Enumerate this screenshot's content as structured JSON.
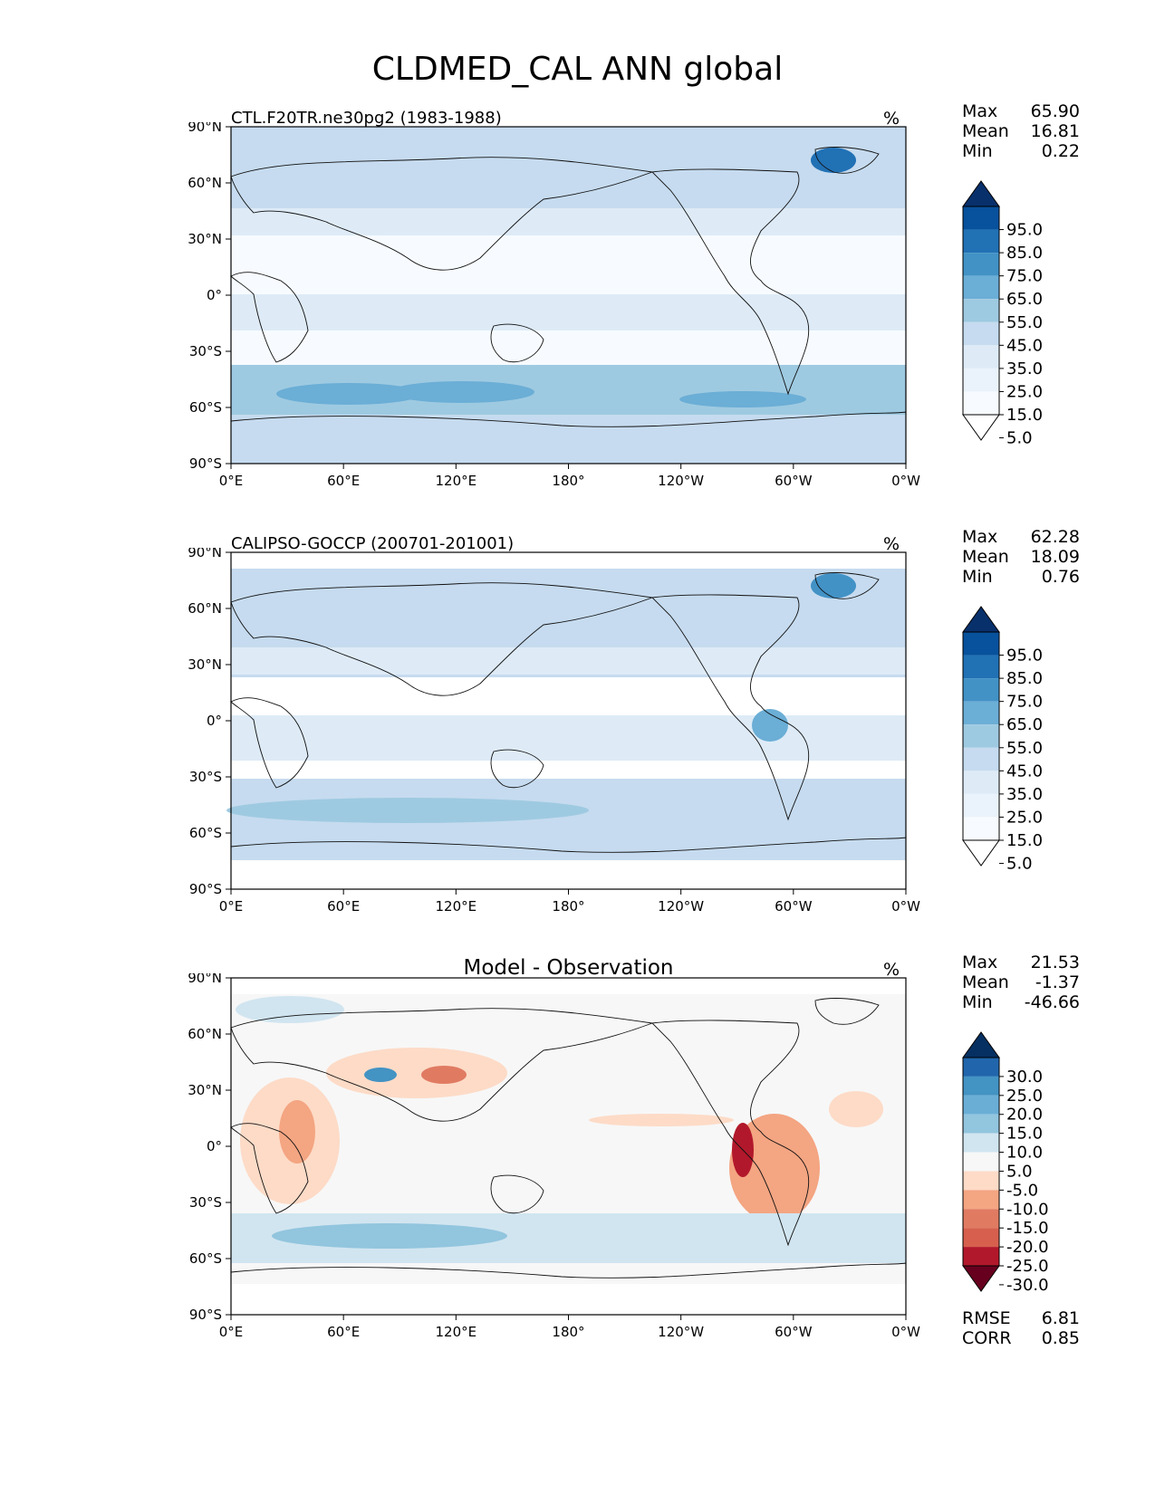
{
  "figure": {
    "title": "CLDMED_CAL ANN global"
  },
  "axes": {
    "lat_labels": [
      "90°N",
      "60°N",
      "30°N",
      "0°",
      "30°S",
      "60°S",
      "90°S"
    ],
    "lon_labels": [
      "0°E",
      "60°E",
      "120°E",
      "180°",
      "120°W",
      "60°W",
      "0°W"
    ]
  },
  "panels": [
    {
      "title": "CTL.F20TR.ne30pg2 (1983-1988)",
      "units": "%",
      "stats": [
        {
          "label": "Max",
          "value": "65.90"
        },
        {
          "label": "Mean",
          "value": "16.81"
        },
        {
          "label": "Min",
          "value": "0.22"
        }
      ],
      "colorbar": {
        "ticks": [
          "95.0",
          "85.0",
          "75.0",
          "65.0",
          "55.0",
          "45.0",
          "35.0",
          "25.0",
          "15.0",
          "5.0"
        ],
        "colors": [
          "#08306b",
          "#08519c",
          "#2171b5",
          "#4292c6",
          "#6baed6",
          "#9ecae1",
          "#c6dbef",
          "#deebf7",
          "#eaf2fb",
          "#f7fbff",
          "#ffffff"
        ]
      }
    },
    {
      "title": "CALIPSO-GOCCP (200701-201001)",
      "units": "%",
      "stats": [
        {
          "label": "Max",
          "value": "62.28"
        },
        {
          "label": "Mean",
          "value": "18.09"
        },
        {
          "label": "Min",
          "value": "0.76"
        }
      ],
      "colorbar": {
        "ticks": [
          "95.0",
          "85.0",
          "75.0",
          "65.0",
          "55.0",
          "45.0",
          "35.0",
          "25.0",
          "15.0",
          "5.0"
        ],
        "colors": [
          "#08306b",
          "#08519c",
          "#2171b5",
          "#4292c6",
          "#6baed6",
          "#9ecae1",
          "#c6dbef",
          "#deebf7",
          "#eaf2fb",
          "#f7fbff",
          "#ffffff"
        ]
      }
    },
    {
      "title": "Model - Observation",
      "units": "%",
      "stats": [
        {
          "label": "Max",
          "value": "21.53"
        },
        {
          "label": "Mean",
          "value": "-1.37"
        },
        {
          "label": "Min",
          "value": "-46.66"
        }
      ],
      "colorbar": {
        "ticks": [
          "30.0",
          "25.0",
          "20.0",
          "15.0",
          "10.0",
          "5.0",
          "-5.0",
          "-10.0",
          "-15.0",
          "-20.0",
          "-25.0",
          "-30.0"
        ],
        "colors": [
          "#053061",
          "#2166ac",
          "#4393c3",
          "#6aaed6",
          "#92c5de",
          "#d1e5f0",
          "#f7f7f7",
          "#fddbc7",
          "#f4a582",
          "#e07b62",
          "#d6604d",
          "#b2182b",
          "#67001f"
        ]
      },
      "metrics": [
        {
          "label": "RMSE",
          "value": "6.81"
        },
        {
          "label": "CORR",
          "value": "0.85"
        }
      ]
    }
  ]
}
